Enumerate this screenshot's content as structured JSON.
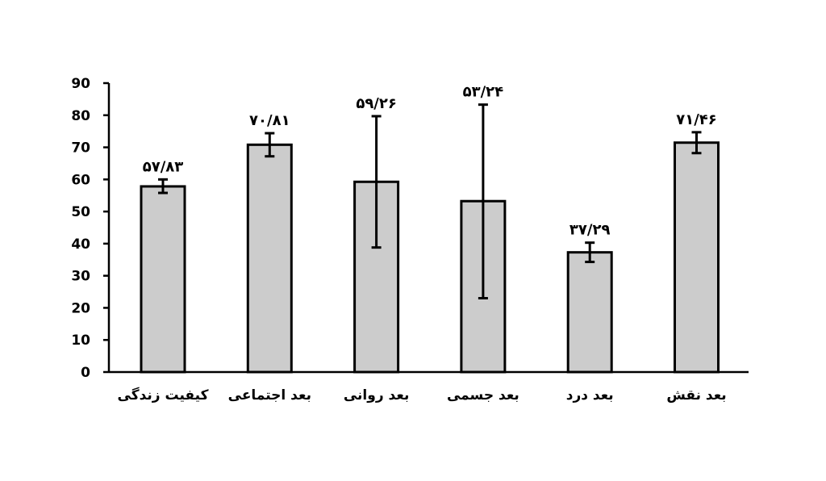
{
  "chart_data": {
    "type": "bar",
    "categories": [
      "کیفیت زندگی",
      "بعد اجتماعی",
      "بعد روانی",
      "بعد جسمی",
      "بعد درد",
      "بعد نقش"
    ],
    "values": [
      57.83,
      70.81,
      59.26,
      53.24,
      37.29,
      71.46
    ],
    "data_labels": [
      "۵۷/۸۳",
      "۷۰/۸۱",
      "۵۹/۲۶",
      "۵۳/۲۴",
      "۳۷/۲۹",
      "۷۱/۴۶"
    ],
    "error_bars": [
      {
        "low": 55.8,
        "high": 60.0
      },
      {
        "low": 67.2,
        "high": 74.4
      },
      {
        "low": 38.8,
        "high": 79.7
      },
      {
        "low": 23.0,
        "high": 83.3
      },
      {
        "low": 34.3,
        "high": 40.3
      },
      {
        "low": 68.2,
        "high": 74.7
      }
    ],
    "ylim": [
      0,
      90
    ],
    "yticks": [
      "0",
      "10",
      "20",
      "30",
      "40",
      "50",
      "60",
      "70",
      "80",
      "90"
    ],
    "grid": false,
    "legend": "none",
    "title": "",
    "xlabel": "",
    "ylabel": "",
    "colors": {
      "bar_fill": "#cccccc",
      "bar_stroke": "#000000",
      "axis": "#000000"
    }
  }
}
